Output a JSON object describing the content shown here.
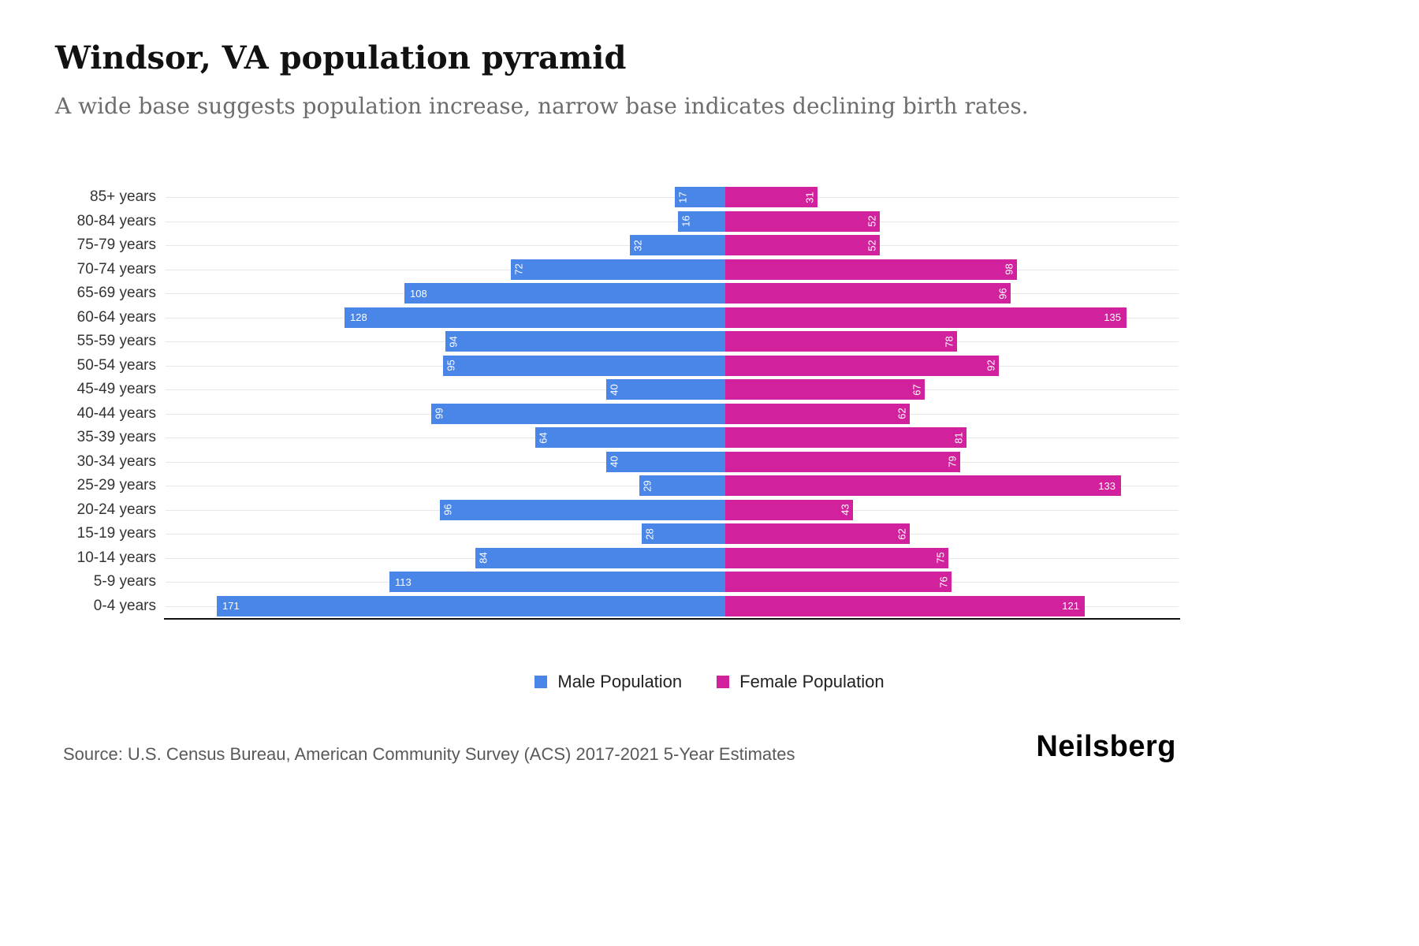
{
  "header": {
    "title": "Windsor, VA population pyramid",
    "subtitle": "A wide base suggests population increase, narrow base indicates declining birth rates."
  },
  "chart_data": {
    "type": "bar",
    "subtype": "population-pyramid",
    "orientation": "horizontal",
    "categories": [
      "85+ years",
      "80-84 years",
      "75-79 years",
      "70-74 years",
      "65-69 years",
      "60-64 years",
      "55-59 years",
      "50-54 years",
      "45-49 years",
      "40-44 years",
      "35-39 years",
      "30-34 years",
      "25-29 years",
      "20-24 years",
      "15-19 years",
      "10-14 years",
      "5-9 years",
      "0-4 years"
    ],
    "series": [
      {
        "name": "Male Population",
        "color": "#4a86e8",
        "values": [
          17,
          16,
          32,
          72,
          108,
          128,
          94,
          95,
          40,
          99,
          64,
          40,
          29,
          96,
          28,
          84,
          113,
          171
        ]
      },
      {
        "name": "Female Population",
        "color": "#d2219c",
        "values": [
          31,
          52,
          52,
          98,
          96,
          135,
          78,
          92,
          67,
          62,
          81,
          79,
          133,
          43,
          62,
          75,
          76,
          121
        ]
      }
    ],
    "value_max": 171,
    "grid": "horizontal-light",
    "legend_position": "bottom-center",
    "value_labels": "inside-bar-ends, white, rotated 90deg when value < 100"
  },
  "legend": {
    "items": [
      {
        "label": "Male Population",
        "color": "#4a86e8"
      },
      {
        "label": "Female Population",
        "color": "#d2219c"
      }
    ]
  },
  "footer": {
    "source": "Source: U.S. Census Bureau, American Community Survey (ACS) 2017-2021 5-Year Estimates",
    "brand": "Neilsberg"
  }
}
